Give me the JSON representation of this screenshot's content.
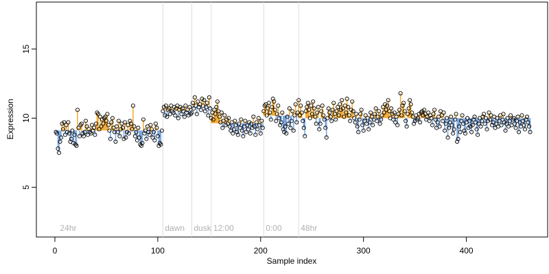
{
  "chart_data": {
    "type": "scatter",
    "x_label": "Sample index",
    "y_label": "Expression",
    "xlim": [
      -18,
      479
    ],
    "ylim": [
      1.4,
      18.4
    ],
    "xticks": [
      0,
      100,
      200,
      300,
      400
    ],
    "yticks": [
      5,
      10,
      15
    ],
    "point_color": "#000000",
    "above_color": "#f0a830",
    "below_color": "#7aa6e0",
    "vlines": [
      105,
      133,
      152,
      203,
      237
    ],
    "annotations": [
      {
        "text": "24hr",
        "x": 3
      },
      {
        "text": "dawn",
        "x": 105
      },
      {
        "text": "dusk",
        "x": 133
      },
      {
        "text": "12:00",
        "x": 152
      },
      {
        "text": "0:00",
        "x": 203
      },
      {
        "text": "48hr",
        "x": 237
      }
    ],
    "x": [
      1,
      2,
      3,
      4,
      5,
      6,
      7,
      8,
      9,
      10,
      11,
      12,
      13,
      14,
      15,
      16,
      17,
      18,
      19,
      20,
      21,
      22,
      23,
      24,
      25,
      26,
      27,
      28,
      29,
      30,
      31,
      32,
      33,
      34,
      35,
      36,
      37,
      38,
      39,
      40,
      41,
      42,
      43,
      44,
      45,
      46,
      47,
      48,
      49,
      50,
      51,
      52,
      53,
      54,
      55,
      56,
      57,
      58,
      59,
      60,
      61,
      62,
      63,
      64,
      65,
      66,
      67,
      68,
      69,
      70,
      71,
      72,
      73,
      74,
      75,
      76,
      77,
      78,
      79,
      80,
      81,
      82,
      83,
      84,
      85,
      86,
      87,
      88,
      89,
      90,
      91,
      92,
      93,
      94,
      95,
      96,
      97,
      98,
      99,
      100,
      101,
      102,
      103,
      104,
      105,
      106,
      107,
      108,
      109,
      110,
      111,
      112,
      113,
      114,
      115,
      116,
      117,
      118,
      119,
      120,
      121,
      122,
      123,
      124,
      125,
      126,
      127,
      128,
      129,
      130,
      131,
      132,
      133,
      134,
      135,
      136,
      137,
      138,
      139,
      140,
      141,
      142,
      143,
      144,
      145,
      146,
      147,
      148,
      149,
      150,
      151,
      152,
      153,
      154,
      155,
      156,
      157,
      158,
      159,
      160,
      161,
      162,
      163,
      164,
      165,
      166,
      167,
      168,
      169,
      170,
      171,
      172,
      173,
      174,
      175,
      176,
      177,
      178,
      179,
      180,
      181,
      182,
      183,
      184,
      185,
      186,
      187,
      188,
      189,
      190,
      191,
      192,
      193,
      194,
      195,
      196,
      197,
      198,
      199,
      200,
      201,
      202,
      203,
      204,
      205,
      206,
      207,
      208,
      209,
      210,
      211,
      212,
      213,
      214,
      215,
      216,
      217,
      218,
      219,
      220,
      221,
      222,
      223,
      224,
      225,
      226,
      227,
      228,
      229,
      230,
      231,
      232,
      233,
      234,
      235,
      236,
      237,
      238,
      239,
      240,
      241,
      242,
      243,
      244,
      245,
      246,
      247,
      248,
      249,
      250,
      251,
      252,
      253,
      254,
      255,
      256,
      257,
      258,
      259,
      260,
      261,
      262,
      263,
      264,
      265,
      266,
      267,
      268,
      269,
      270,
      271,
      272,
      273,
      274,
      275,
      276,
      277,
      278,
      279,
      280,
      281,
      282,
      283,
      284,
      285,
      286,
      287,
      288,
      289,
      290,
      291,
      292,
      293,
      294,
      295,
      296,
      297,
      298,
      299,
      300,
      301,
      302,
      303,
      304,
      305,
      306,
      307,
      308,
      309,
      310,
      311,
      312,
      313,
      314,
      315,
      316,
      317,
      318,
      319,
      320,
      321,
      322,
      323,
      324,
      325,
      326,
      327,
      328,
      329,
      330,
      331,
      332,
      333,
      334,
      335,
      336,
      337,
      338,
      339,
      340,
      341,
      342,
      343,
      344,
      345,
      346,
      347,
      348,
      349,
      350,
      351,
      352,
      353,
      354,
      355,
      356,
      357,
      358,
      359,
      360,
      361,
      362,
      363,
      364,
      365,
      366,
      367,
      368,
      369,
      370,
      371,
      372,
      373,
      374,
      375,
      376,
      377,
      378,
      379,
      380,
      381,
      382,
      383,
      384,
      385,
      386,
      387,
      388,
      389,
      390,
      391,
      392,
      393,
      394,
      395,
      396,
      397,
      398,
      399,
      400,
      401,
      402,
      403,
      404,
      405,
      406,
      407,
      408,
      409,
      410,
      411,
      412,
      413,
      414,
      415,
      416,
      417,
      418,
      419,
      420,
      421,
      422,
      423,
      424,
      425,
      426,
      427,
      428,
      429,
      430,
      431,
      432,
      433,
      434,
      435,
      436,
      437,
      438,
      439,
      440,
      441,
      442,
      443,
      444,
      445,
      446,
      447,
      448,
      449,
      450,
      451,
      452,
      453,
      454,
      455,
      456,
      457,
      458,
      459,
      460,
      461,
      462
    ],
    "values": [
      9.0,
      8.9,
      7.8,
      7.5,
      8.3,
      8.6,
      9.6,
      9.2,
      9.7,
      8.8,
      9.5,
      9.0,
      9.7,
      8.9,
      8.3,
      8.5,
      9.1,
      8.2,
      8.8,
      8.1,
      8.0,
      10.6,
      9.3,
      8.7,
      9.5,
      9.6,
      8.9,
      8.7,
      9.0,
      9.8,
      9.4,
      8.8,
      9.2,
      9.0,
      8.9,
      9.5,
      9.1,
      9.3,
      8.8,
      9.6,
      10.4,
      10.3,
      9.2,
      10.1,
      9.4,
      9.9,
      9.6,
      10.0,
      10.1,
      9.8,
      10.3,
      9.5,
      9.1,
      8.5,
      9.7,
      10.0,
      9.3,
      9.0,
      8.3,
      9.4,
      9.0,
      9.8,
      8.7,
      9.2,
      9.6,
      9.3,
      8.5,
      9.7,
      8.6,
      9.0,
      9.5,
      8.9,
      9.8,
      9.6,
      9.2,
      10.9,
      9.4,
      8.7,
      9.0,
      8.4,
      9.3,
      8.6,
      8.1,
      8.0,
      8.2,
      9.9,
      8.9,
      9.1,
      8.5,
      9.4,
      9.0,
      8.8,
      9.5,
      9.2,
      8.6,
      9.0,
      8.4,
      9.6,
      9.3,
      8.7,
      8.0,
      8.2,
      8.1,
      9.1,
      10.5,
      10.8,
      10.2,
      10.9,
      10.1,
      10.6,
      10.7,
      10.3,
      10.9,
      10.5,
      10.4,
      10.8,
      10.2,
      10.7,
      10.9,
      10.0,
      10.6,
      10.8,
      10.3,
      10.7,
      10.5,
      10.1,
      10.9,
      10.4,
      10.6,
      10.2,
      10.8,
      10.3,
      10.4,
      11.1,
      10.7,
      11.5,
      10.9,
      10.3,
      11.2,
      10.8,
      11.0,
      10.6,
      11.4,
      10.9,
      11.3,
      10.5,
      10.8,
      11.1,
      10.2,
      11.5,
      10.7,
      10.0,
      10.4,
      9.9,
      10.6,
      10.3,
      10.8,
      11.2,
      10.5,
      10.1,
      9.7,
      10.4,
      9.3,
      9.8,
      10.2,
      9.5,
      9.9,
      9.6,
      10.0,
      9.4,
      9.1,
      9.7,
      8.9,
      9.2,
      9.8,
      9.5,
      9.0,
      8.8,
      9.6,
      9.3,
      9.9,
      9.1,
      8.7,
      9.4,
      9.8,
      9.0,
      9.5,
      9.2,
      9.7,
      8.9,
      9.6,
      9.3,
      10.1,
      9.4,
      8.8,
      9.7,
      9.2,
      10.0,
      9.5,
      8.9,
      9.8,
      9.3,
      10.5,
      10.9,
      11.0,
      10.2,
      10.7,
      11.1,
      10.4,
      9.9,
      10.8,
      11.4,
      11.2,
      10.6,
      9.8,
      10.3,
      10.9,
      10.0,
      9.5,
      9.7,
      10.4,
      9.2,
      9.0,
      9.4,
      8.9,
      10.1,
      9.6,
      10.7,
      9.3,
      9.8,
      10.5,
      9.1,
      10.2,
      11.0,
      9.7,
      10.4,
      11.3,
      10.2,
      10.9,
      10.4,
      9.8,
      9.3,
      8.7,
      10.5,
      10.8,
      11.1,
      10.6,
      10.0,
      10.9,
      10.3,
      11.2,
      10.7,
      10.1,
      9.6,
      10.4,
      10.8,
      9.2,
      9.6,
      10.5,
      10.9,
      10.2,
      9.9,
      9.3,
      8.6,
      10.0,
      10.7,
      10.4,
      10.1,
      9.8,
      10.6,
      11.1,
      10.3,
      9.9,
      10.5,
      10.8,
      10.2,
      11.0,
      10.6,
      11.3,
      10.7,
      10.1,
      10.9,
      10.4,
      11.4,
      10.8,
      10.2,
      9.8,
      10.6,
      11.2,
      10.5,
      10.0,
      9.7,
      10.3,
      9.4,
      9.0,
      9.9,
      10.3,
      10.6,
      9.5,
      9.1,
      9.8,
      10.2,
      9.6,
      10.0,
      9.2,
      9.7,
      10.4,
      10.1,
      9.5,
      9.9,
      10.3,
      10.7,
      9.8,
      10.1,
      10.5,
      9.6,
      9.9,
      10.2,
      10.8,
      10.4,
      11.0,
      10.6,
      10.9,
      11.3,
      10.5,
      10.0,
      10.7,
      10.3,
      9.9,
      10.4,
      9.7,
      10.1,
      9.5,
      10.3,
      10.6,
      11.8,
      10.2,
      10.9,
      11.1,
      10.5,
      9.8,
      9.4,
      10.3,
      10.7,
      11.3,
      11.0,
      10.4,
      10.1,
      9.6,
      9.8,
      10.2,
      9.9,
      10.0,
      10.3,
      9.7,
      10.4,
      10.5,
      10.2,
      10.6,
      10.3,
      9.9,
      10.1,
      10.4,
      9.8,
      10.2,
      10.0,
      9.5,
      10.3,
      10.6,
      9.9,
      9.3,
      9.7,
      10.1,
      9.4,
      10.5,
      10.2,
      9.8,
      10.4,
      9.1,
      9.6,
      10.0,
      8.6,
      9.3,
      9.7,
      10.1,
      9.5,
      8.9,
      9.2,
      9.9,
      10.3,
      8.3,
      8.5,
      9.4,
      9.0,
      9.8,
      10.2,
      9.6,
      9.1,
      8.9,
      9.7,
      10.0,
      9.3,
      9.8,
      9.4,
      9.0,
      9.5,
      9.9,
      10.1,
      9.7,
      9.2,
      8.8,
      9.6,
      10.0,
      9.4,
      9.8,
      10.1,
      10.3,
      9.6,
      10.0,
      9.2,
      9.8,
      10.4,
      9.9,
      10.2,
      9.5,
      9.7,
      10.1,
      9.3,
      9.6,
      10.0,
      9.4,
      9.8,
      10.2,
      9.5,
      9.9,
      10.3,
      9.7,
      9.1,
      9.6,
      10.0,
      9.4,
      9.8,
      10.2,
      9.5,
      9.9,
      10.0,
      9.6,
      9.3,
      9.8,
      10.1,
      9.0,
      9.7,
      9.4,
      10.2,
      9.8,
      9.5,
      9.2,
      9.9,
      10.1,
      9.7,
      9.4,
      9.0
    ]
  }
}
